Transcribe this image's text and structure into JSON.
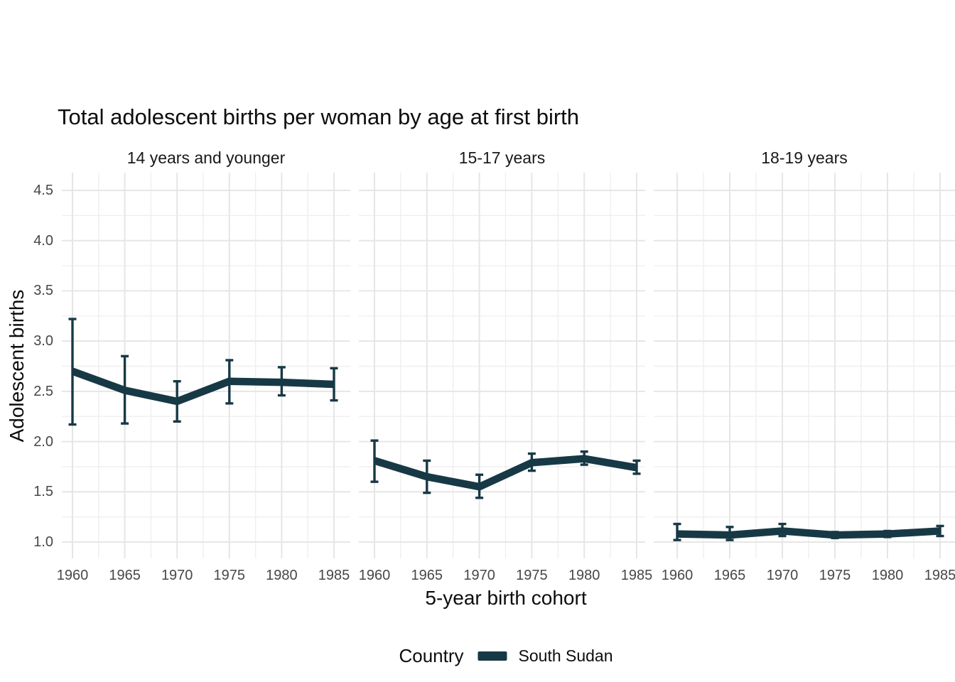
{
  "title": "Total adolescent births per woman by age at first birth",
  "axes": {
    "x_title": "5-year birth cohort",
    "y_title": "Adolescent births"
  },
  "legend": {
    "title": "Country",
    "series_label": "South Sudan"
  },
  "colors": {
    "series": "#173945",
    "grid_major": "#e6e6e6",
    "grid_minor": "#efefef",
    "tick_text": "#474747",
    "title_text": "#0d0d0d"
  },
  "chart_data": {
    "type": "line",
    "title": "Total adolescent births per woman by age at first birth",
    "xlabel": "5-year birth cohort",
    "ylabel": "Adolescent births",
    "x": [
      1960,
      1965,
      1970,
      1975,
      1980,
      1985
    ],
    "x_tick_labels": [
      "1960",
      "1965",
      "1970",
      "1975",
      "1980",
      "1985"
    ],
    "y_ticks": [
      1.0,
      1.5,
      2.0,
      2.5,
      3.0,
      3.5,
      4.0,
      4.5
    ],
    "y_tick_labels": [
      "1.0",
      "1.5",
      "2.0",
      "2.5",
      "3.0",
      "3.5",
      "4.0",
      "4.5"
    ],
    "ylim": [
      0.84,
      4.68
    ],
    "grid": true,
    "legend_position": "bottom",
    "series_name": "South Sudan",
    "error_bars": true,
    "facets": [
      {
        "label": "14 years and younger",
        "series": [
          {
            "name": "South Sudan",
            "values": [
              2.7,
              2.51,
              2.4,
              2.6,
              2.59,
              2.57
            ],
            "ci_low": [
              2.17,
              2.18,
              2.2,
              2.38,
              2.46,
              2.41
            ],
            "ci_high": [
              3.22,
              2.85,
              2.6,
              2.81,
              2.74,
              2.73
            ]
          }
        ]
      },
      {
        "label": "15-17 years",
        "series": [
          {
            "name": "South Sudan",
            "values": [
              1.81,
              1.65,
              1.55,
              1.79,
              1.83,
              1.74
            ],
            "ci_low": [
              1.6,
              1.49,
              1.44,
              1.71,
              1.77,
              1.68
            ],
            "ci_high": [
              2.01,
              1.81,
              1.67,
              1.88,
              1.9,
              1.81
            ]
          }
        ]
      },
      {
        "label": "18-19 years",
        "series": [
          {
            "name": "South Sudan",
            "values": [
              1.08,
              1.07,
              1.11,
              1.07,
              1.08,
              1.11
            ],
            "ci_low": [
              1.02,
              1.02,
              1.06,
              1.04,
              1.05,
              1.06
            ],
            "ci_high": [
              1.18,
              1.15,
              1.18,
              1.1,
              1.11,
              1.16
            ]
          }
        ]
      }
    ]
  }
}
